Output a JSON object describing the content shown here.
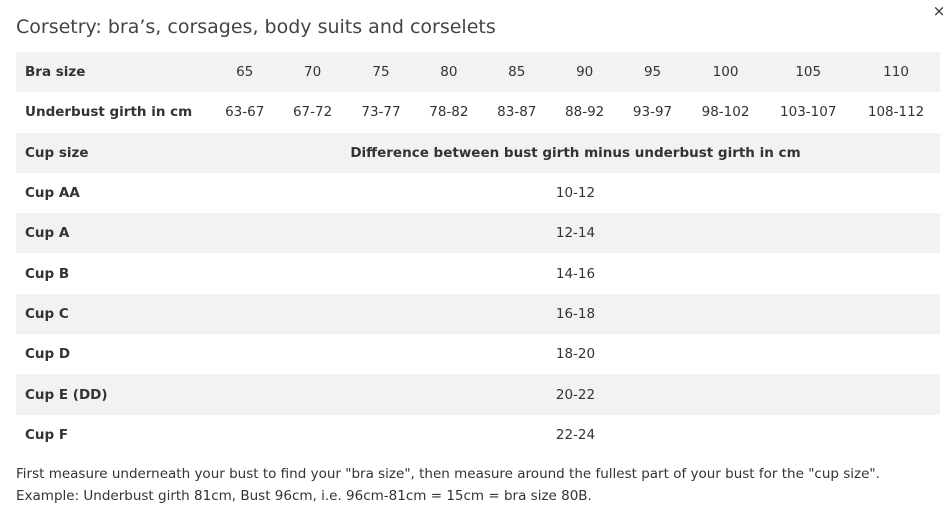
{
  "dialog": {
    "title": "Corsetry: bra’s, corsages, body suits and corselets",
    "close_label": "×"
  },
  "table": {
    "bra_size": {
      "label": "Bra size",
      "values": [
        "65",
        "70",
        "75",
        "80",
        "85",
        "90",
        "95",
        "100",
        "105",
        "110"
      ]
    },
    "underbust": {
      "label": "Underbust girth in cm",
      "values": [
        "63-67",
        "67-72",
        "73-77",
        "78-82",
        "83-87",
        "88-92",
        "93-97",
        "98-102",
        "103-107",
        "108-112"
      ]
    },
    "cup_header": {
      "label": "Cup size",
      "value": "Difference between bust girth minus underbust girth in cm"
    },
    "cups": [
      {
        "label": "Cup AA",
        "value": "10-12"
      },
      {
        "label": "Cup A",
        "value": "12-14"
      },
      {
        "label": "Cup B",
        "value": "14-16"
      },
      {
        "label": "Cup C",
        "value": "16-18"
      },
      {
        "label": "Cup D",
        "value": "18-20"
      },
      {
        "label": "Cup E (DD)",
        "value": "20-22"
      },
      {
        "label": "Cup F",
        "value": "22-24"
      }
    ]
  },
  "note": "First measure underneath your bust to find your \"bra size\", then measure around the fullest part of your bust for the \"cup size\". Example: Underbust girth 81cm, Bust 96cm, i.e. 96cm-81cm = 15cm = bra size 80B."
}
